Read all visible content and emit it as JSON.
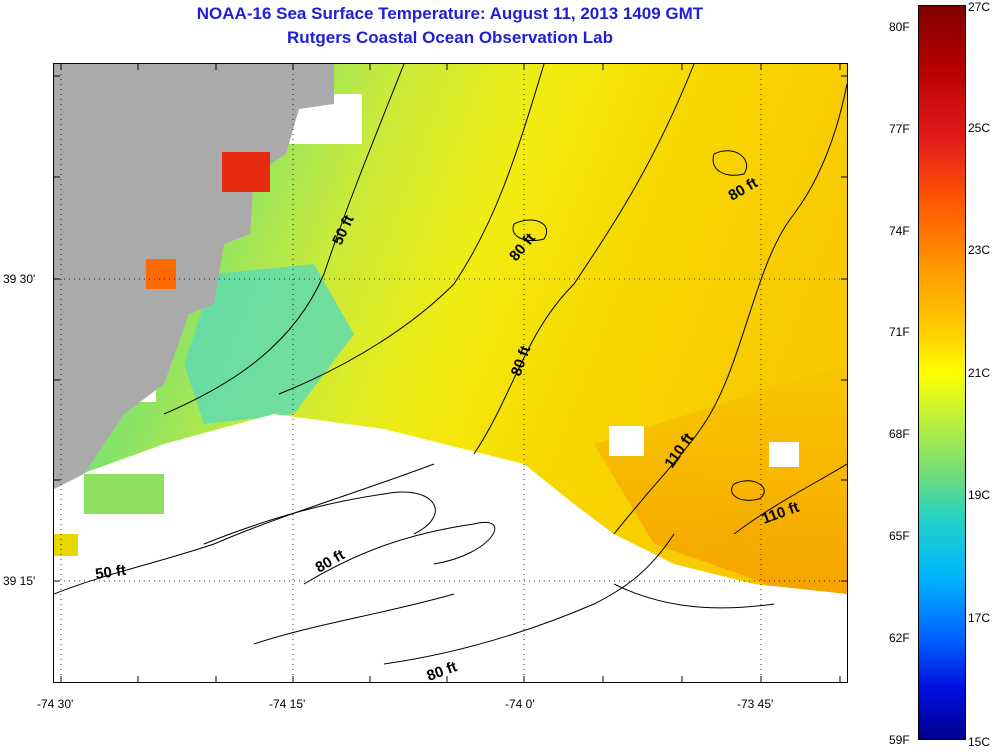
{
  "header": {
    "title": "NOAA-16 Sea Surface Temperature:  August 11, 2013 1409 GMT",
    "subtitle": "Rutgers Coastal Ocean Observation Lab"
  },
  "map": {
    "longitude_labels": [
      "-74 30'",
      "-74 15'",
      "-74 0'",
      "-73 45'"
    ],
    "latitude_labels": [
      "39 30'",
      "39 15'"
    ],
    "depth_contour_labels": [
      "50 ft",
      "80 ft",
      "80 ft",
      "80 ft",
      "110 ft",
      "110 ft",
      "50 ft",
      "80 ft",
      "80 ft"
    ]
  },
  "colorbar": {
    "fahrenheit_labels": [
      "80F",
      "77F",
      "74F",
      "71F",
      "68F",
      "65F",
      "62F",
      "59F"
    ],
    "celsius_labels": [
      "27C",
      "25C",
      "23C",
      "21C",
      "19C",
      "17C",
      "15C"
    ]
  },
  "colors": {
    "title": "#1f1fd6",
    "land": "#aaaaaa",
    "no_data": "#ffffff",
    "warm_sst": "#f5c400",
    "cool_sst": "#6ee080"
  }
}
